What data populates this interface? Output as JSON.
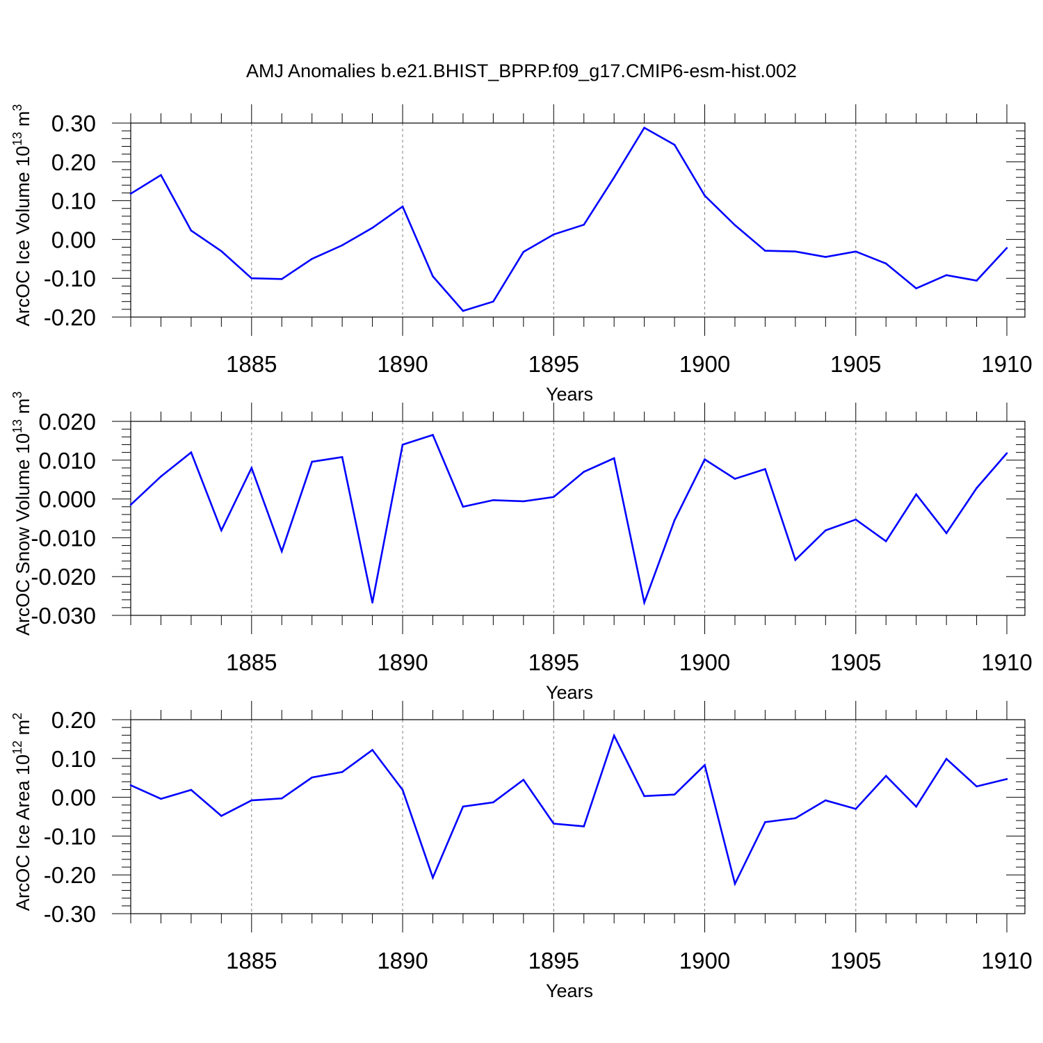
{
  "title": "AMJ Anomalies b.e21.BHIST_BPRP.f09_g17.CMIP6-esm-hist.002",
  "colors": {
    "line": "#0000ff",
    "axis": "#000000",
    "grid": "#808080"
  },
  "chart_data": [
    {
      "type": "line",
      "ylabel_main": "ArcOC Ice Volume 10",
      "ylabel_exp": "13",
      "ylabel_unit": " m",
      "ylabel_unit_exp": "3",
      "xlabel": "Years",
      "xlim": [
        1881,
        1910
      ],
      "ylim": [
        -0.2,
        0.3
      ],
      "yticks": [
        -0.2,
        -0.1,
        0.0,
        0.1,
        0.2,
        0.3
      ],
      "ytick_labels": [
        "-0.20",
        "-0.10",
        "0.00",
        "0.10",
        "0.20",
        "0.30"
      ],
      "xticks": [
        1885,
        1890,
        1895,
        1900,
        1905,
        1910
      ],
      "xtick_labels": [
        "1885",
        "1890",
        "1895",
        "1900",
        "1905",
        "1910"
      ],
      "grid": "vertical dashed at major x ticks",
      "x": [
        1881,
        1882,
        1883,
        1884,
        1885,
        1886,
        1887,
        1888,
        1889,
        1890,
        1891,
        1892,
        1893,
        1894,
        1895,
        1896,
        1897,
        1898,
        1899,
        1900,
        1901,
        1902,
        1903,
        1904,
        1905,
        1906,
        1907,
        1908,
        1909,
        1910
      ],
      "y": [
        0.118,
        0.166,
        0.023,
        -0.03,
        -0.1,
        -0.102,
        -0.05,
        -0.015,
        0.03,
        0.085,
        -0.095,
        -0.184,
        -0.16,
        -0.032,
        0.013,
        0.038,
        0.16,
        0.288,
        0.244,
        0.113,
        0.037,
        -0.029,
        -0.031,
        -0.045,
        -0.031,
        -0.062,
        -0.126,
        -0.092,
        -0.106,
        -0.022
      ]
    },
    {
      "type": "line",
      "ylabel_main": "ArcOC Snow Volume 10",
      "ylabel_exp": "13",
      "ylabel_unit": " m",
      "ylabel_unit_exp": "3",
      "xlabel": "Years",
      "xlim": [
        1881,
        1910
      ],
      "ylim": [
        -0.03,
        0.02
      ],
      "yticks": [
        -0.03,
        -0.02,
        -0.01,
        0.0,
        0.01,
        0.02
      ],
      "ytick_labels": [
        "-0.030",
        "-0.020",
        "-0.010",
        "0.000",
        "0.010",
        "0.020"
      ],
      "xticks": [
        1885,
        1890,
        1895,
        1900,
        1905,
        1910
      ],
      "xtick_labels": [
        "1885",
        "1890",
        "1895",
        "1900",
        "1905",
        "1910"
      ],
      "grid": "vertical dashed at major x ticks",
      "x": [
        1881,
        1882,
        1883,
        1884,
        1885,
        1886,
        1887,
        1888,
        1889,
        1890,
        1891,
        1892,
        1893,
        1894,
        1895,
        1896,
        1897,
        1898,
        1899,
        1900,
        1901,
        1902,
        1903,
        1904,
        1905,
        1906,
        1907,
        1908,
        1909,
        1910
      ],
      "y": [
        -0.0015,
        0.0058,
        0.012,
        -0.0081,
        0.008,
        -0.0135,
        0.0096,
        0.0108,
        -0.0267,
        0.014,
        0.0165,
        -0.002,
        -0.0003,
        -0.0006,
        0.0005,
        0.007,
        0.0105,
        -0.0267,
        -0.0055,
        0.0102,
        0.0052,
        0.0077,
        -0.0157,
        -0.0081,
        -0.0053,
        -0.0109,
        0.0012,
        -0.0088,
        0.0028,
        0.0118
      ]
    },
    {
      "type": "line",
      "ylabel_main": "ArcOC Ice Area 10",
      "ylabel_exp": "12",
      "ylabel_unit": " m",
      "ylabel_unit_exp": "2",
      "xlabel": "Years",
      "xlim": [
        1881,
        1910
      ],
      "ylim": [
        -0.3,
        0.2
      ],
      "yticks": [
        -0.3,
        -0.2,
        -0.1,
        0.0,
        0.1,
        0.2
      ],
      "ytick_labels": [
        "-0.30",
        "-0.20",
        "-0.10",
        "0.00",
        "0.10",
        "0.20"
      ],
      "xticks": [
        1885,
        1890,
        1895,
        1900,
        1905,
        1910
      ],
      "xtick_labels": [
        "1885",
        "1890",
        "1895",
        "1900",
        "1905",
        "1910"
      ],
      "grid": "vertical dashed at major x ticks",
      "x": [
        1881,
        1882,
        1883,
        1884,
        1885,
        1886,
        1887,
        1888,
        1889,
        1890,
        1891,
        1892,
        1893,
        1894,
        1895,
        1896,
        1897,
        1898,
        1899,
        1900,
        1901,
        1902,
        1903,
        1904,
        1905,
        1906,
        1907,
        1908,
        1909,
        1910
      ],
      "y": [
        0.031,
        -0.004,
        0.019,
        -0.048,
        -0.008,
        -0.003,
        0.051,
        0.065,
        0.122,
        0.019,
        -0.207,
        -0.024,
        -0.013,
        0.045,
        -0.068,
        -0.075,
        0.159,
        0.003,
        0.007,
        0.083,
        -0.223,
        -0.064,
        -0.054,
        -0.008,
        -0.03,
        0.055,
        -0.024,
        0.099,
        0.028,
        0.047
      ]
    }
  ]
}
